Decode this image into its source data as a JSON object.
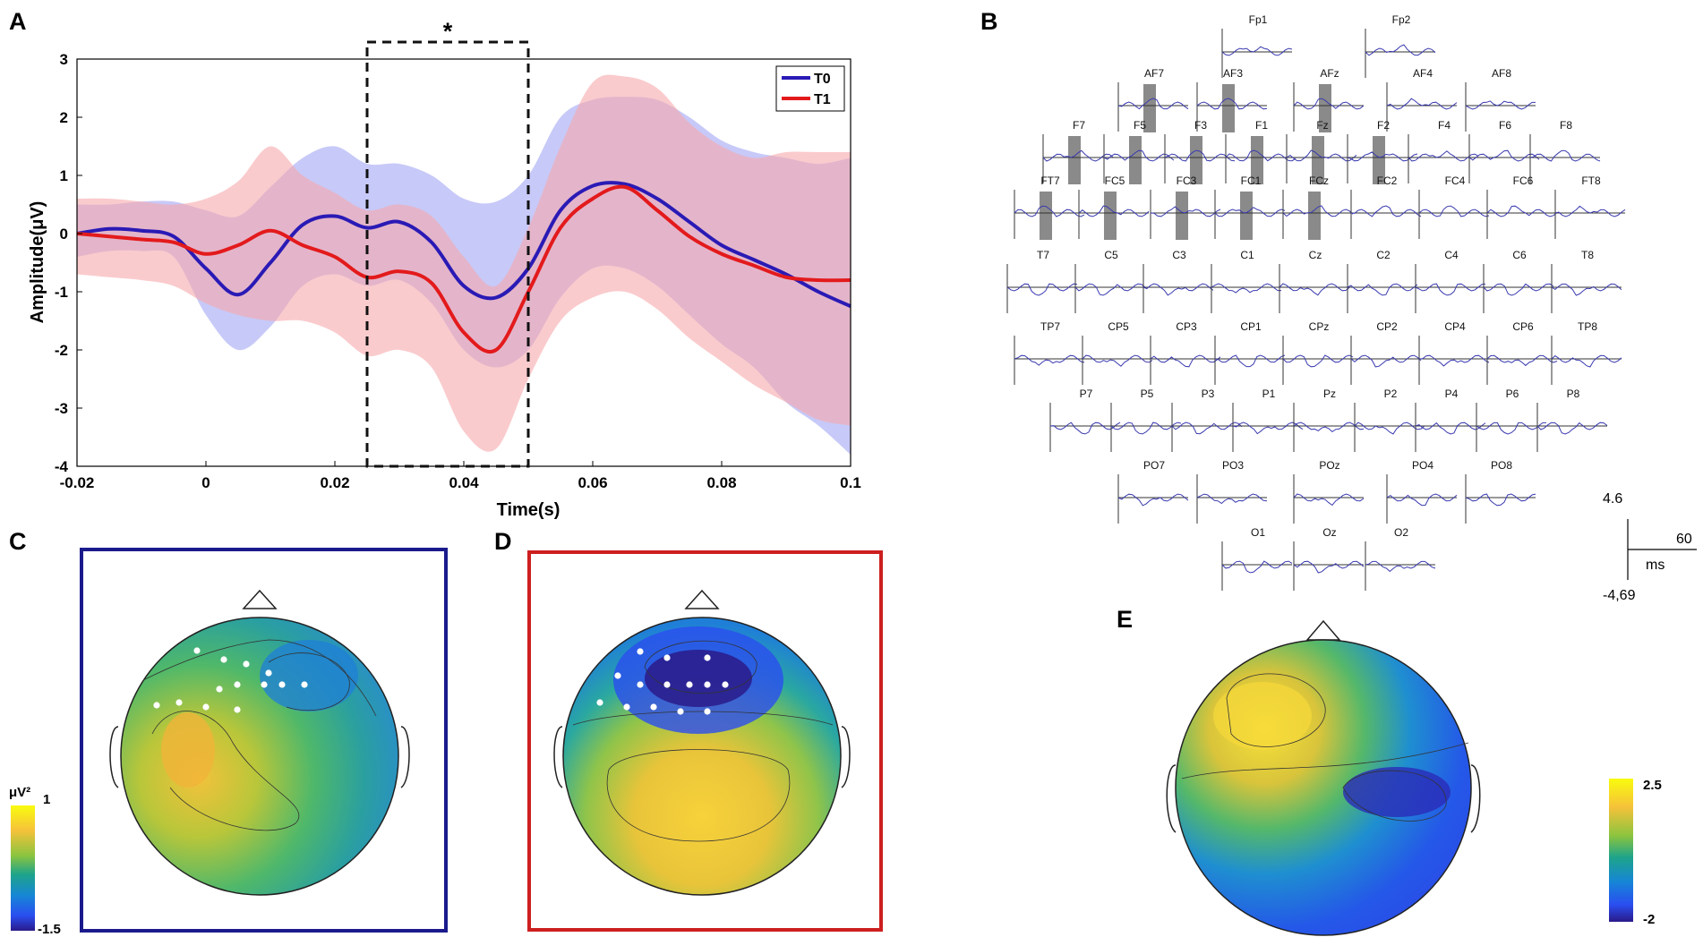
{
  "panels": {
    "a": "A",
    "b": "B",
    "c": "C",
    "d": "D",
    "e": "E"
  },
  "colors": {
    "t0": "#2a1ab5",
    "t1": "#e31a1c",
    "t0_band": "#a9acf5",
    "t1_band": "#f6a9ab",
    "overlap": "#c98bc2",
    "box_c": "#1a1a8c",
    "box_d": "#cc1f1f"
  },
  "chart_data": [
    {
      "type": "line",
      "xlabel": "Time(s)",
      "ylabel": "Amplitude(μV)",
      "xlim": [
        -0.02,
        0.1
      ],
      "ylim": [
        -4,
        3
      ],
      "xticks": [
        "-0.02",
        "0",
        "0.02",
        "0.04",
        "0.06",
        "0.08",
        "0.1"
      ],
      "yticks": [
        "3",
        "2",
        "1",
        "0",
        "-1",
        "-2",
        "-3",
        "-4"
      ],
      "x": [
        -0.02,
        -0.015,
        -0.01,
        -0.005,
        0,
        0.005,
        0.01,
        0.015,
        0.02,
        0.025,
        0.03,
        0.035,
        0.04,
        0.045,
        0.05,
        0.055,
        0.06,
        0.065,
        0.07,
        0.075,
        0.08,
        0.085,
        0.09,
        0.095,
        0.1
      ],
      "series": [
        {
          "name": "T0",
          "values": [
            0.0,
            0.08,
            0.05,
            -0.05,
            -0.6,
            -1.05,
            -0.5,
            0.15,
            0.3,
            0.1,
            0.2,
            -0.15,
            -0.9,
            -1.1,
            -0.6,
            0.4,
            0.82,
            0.85,
            0.6,
            0.2,
            -0.2,
            -0.45,
            -0.7,
            -1.0,
            -1.25
          ],
          "upper": [
            0.5,
            0.5,
            0.55,
            0.55,
            0.4,
            0.3,
            0.8,
            1.3,
            1.5,
            1.2,
            1.2,
            1.0,
            0.6,
            0.55,
            1.0,
            2.0,
            2.3,
            2.35,
            2.3,
            2.0,
            1.6,
            1.4,
            1.3,
            1.2,
            1.3
          ],
          "lower": [
            -0.4,
            -0.3,
            -0.3,
            -0.4,
            -1.4,
            -2.0,
            -1.6,
            -0.9,
            -0.7,
            -0.9,
            -0.8,
            -1.2,
            -2.0,
            -2.3,
            -2.0,
            -1.1,
            -0.6,
            -0.6,
            -0.9,
            -1.4,
            -1.9,
            -2.3,
            -2.9,
            -3.3,
            -3.8
          ]
        },
        {
          "name": "T1",
          "values": [
            0.0,
            -0.05,
            -0.1,
            -0.15,
            -0.35,
            -0.2,
            0.05,
            -0.2,
            -0.4,
            -0.75,
            -0.65,
            -0.85,
            -1.7,
            -2.0,
            -1.0,
            0.1,
            0.6,
            0.8,
            0.4,
            -0.05,
            -0.35,
            -0.55,
            -0.75,
            -0.8,
            -0.8
          ],
          "upper": [
            0.6,
            0.6,
            0.55,
            0.5,
            0.6,
            0.9,
            1.5,
            1.0,
            0.7,
            0.4,
            0.5,
            0.3,
            -0.4,
            -0.9,
            0.1,
            1.5,
            2.6,
            2.7,
            2.5,
            1.9,
            1.5,
            1.3,
            1.4,
            1.4,
            1.4
          ],
          "lower": [
            -0.7,
            -0.75,
            -0.8,
            -0.9,
            -1.2,
            -1.4,
            -1.5,
            -1.5,
            -1.7,
            -2.1,
            -2.0,
            -2.3,
            -3.4,
            -3.7,
            -2.5,
            -1.5,
            -1.1,
            -1.0,
            -1.3,
            -1.8,
            -2.2,
            -2.6,
            -2.9,
            -3.2,
            -3.3
          ]
        }
      ],
      "annotations": [
        {
          "type": "dashed-box",
          "x_range": [
            0.025,
            0.05
          ],
          "label": "*"
        }
      ],
      "legend": {
        "position": "top-right",
        "entries": [
          "T0",
          "T1"
        ]
      }
    }
  ],
  "electrodes": [
    {
      "name": "Fp1",
      "row": 0,
      "col": 3.0
    },
    {
      "name": "Fp2",
      "row": 0,
      "col": 5.0
    },
    {
      "name": "AF7",
      "row": 1,
      "col": 1.55
    },
    {
      "name": "AF3",
      "row": 1,
      "col": 2.65
    },
    {
      "name": "AFz",
      "row": 1,
      "col": 4.0
    },
    {
      "name": "AF4",
      "row": 1,
      "col": 5.3
    },
    {
      "name": "AF8",
      "row": 1,
      "col": 6.4
    },
    {
      "name": "F7",
      "row": 2,
      "col": 0.5
    },
    {
      "name": "F5",
      "row": 2,
      "col": 1.35
    },
    {
      "name": "F3",
      "row": 2,
      "col": 2.2
    },
    {
      "name": "F1",
      "row": 2,
      "col": 3.05
    },
    {
      "name": "Fz",
      "row": 2,
      "col": 3.9
    },
    {
      "name": "F2",
      "row": 2,
      "col": 4.75
    },
    {
      "name": "F4",
      "row": 2,
      "col": 5.6
    },
    {
      "name": "F6",
      "row": 2,
      "col": 6.45
    },
    {
      "name": "F8",
      "row": 2,
      "col": 7.3
    },
    {
      "name": "FT7",
      "row": 3,
      "col": 0.1
    },
    {
      "name": "FC5",
      "row": 3,
      "col": 1.0
    },
    {
      "name": "FC3",
      "row": 3,
      "col": 2.0
    },
    {
      "name": "FC1",
      "row": 3,
      "col": 2.9
    },
    {
      "name": "FCz",
      "row": 3,
      "col": 3.85
    },
    {
      "name": "FC2",
      "row": 3,
      "col": 4.8
    },
    {
      "name": "FC4",
      "row": 3,
      "col": 5.75
    },
    {
      "name": "FC6",
      "row": 3,
      "col": 6.7
    },
    {
      "name": "FT8",
      "row": 3,
      "col": 7.65
    },
    {
      "name": "T7",
      "row": 4,
      "col": 0.0
    },
    {
      "name": "C5",
      "row": 4,
      "col": 0.95
    },
    {
      "name": "C3",
      "row": 4,
      "col": 1.9
    },
    {
      "name": "C1",
      "row": 4,
      "col": 2.85
    },
    {
      "name": "Cz",
      "row": 4,
      "col": 3.8
    },
    {
      "name": "C2",
      "row": 4,
      "col": 4.75
    },
    {
      "name": "C4",
      "row": 4,
      "col": 5.7
    },
    {
      "name": "C6",
      "row": 4,
      "col": 6.65
    },
    {
      "name": "T8",
      "row": 4,
      "col": 7.6
    },
    {
      "name": "TP7",
      "row": 5,
      "col": 0.1
    },
    {
      "name": "CP5",
      "row": 5,
      "col": 1.05
    },
    {
      "name": "CP3",
      "row": 5,
      "col": 2.0
    },
    {
      "name": "CP1",
      "row": 5,
      "col": 2.9
    },
    {
      "name": "CPz",
      "row": 5,
      "col": 3.85
    },
    {
      "name": "CP2",
      "row": 5,
      "col": 4.8
    },
    {
      "name": "CP4",
      "row": 5,
      "col": 5.75
    },
    {
      "name": "CP6",
      "row": 5,
      "col": 6.7
    },
    {
      "name": "TP8",
      "row": 5,
      "col": 7.6
    },
    {
      "name": "P7",
      "row": 6,
      "col": 0.6
    },
    {
      "name": "P5",
      "row": 6,
      "col": 1.45
    },
    {
      "name": "P3",
      "row": 6,
      "col": 2.3
    },
    {
      "name": "P1",
      "row": 6,
      "col": 3.15
    },
    {
      "name": "Pz",
      "row": 6,
      "col": 4.0
    },
    {
      "name": "P2",
      "row": 6,
      "col": 4.85
    },
    {
      "name": "P4",
      "row": 6,
      "col": 5.7
    },
    {
      "name": "P6",
      "row": 6,
      "col": 6.55
    },
    {
      "name": "P8",
      "row": 6,
      "col": 7.4
    },
    {
      "name": "PO7",
      "row": 7,
      "col": 1.55
    },
    {
      "name": "PO3",
      "row": 7,
      "col": 2.65
    },
    {
      "name": "POz",
      "row": 7,
      "col": 4.0
    },
    {
      "name": "PO4",
      "row": 7,
      "col": 5.3
    },
    {
      "name": "PO8",
      "row": 7,
      "col": 6.4
    },
    {
      "name": "O1",
      "row": 8,
      "col": 3.0
    },
    {
      "name": "Oz",
      "row": 8,
      "col": 4.0
    },
    {
      "name": "O2",
      "row": 8,
      "col": 5.0
    }
  ],
  "significant_electrodes": [
    "AF7",
    "AF3",
    "AFz",
    "F7",
    "F5",
    "F3",
    "F1",
    "Fz",
    "F2",
    "FT7",
    "FC5",
    "FC3",
    "FC1",
    "FCz"
  ],
  "scale_bar": {
    "top": "4.6",
    "bottom": "-4,69",
    "time": "60",
    "unit": "ms"
  },
  "colorbar_c": {
    "unit": "μV²",
    "max": "1",
    "min": "-1.5"
  },
  "colorbar_e": {
    "max": "2.5",
    "min": "-2"
  }
}
